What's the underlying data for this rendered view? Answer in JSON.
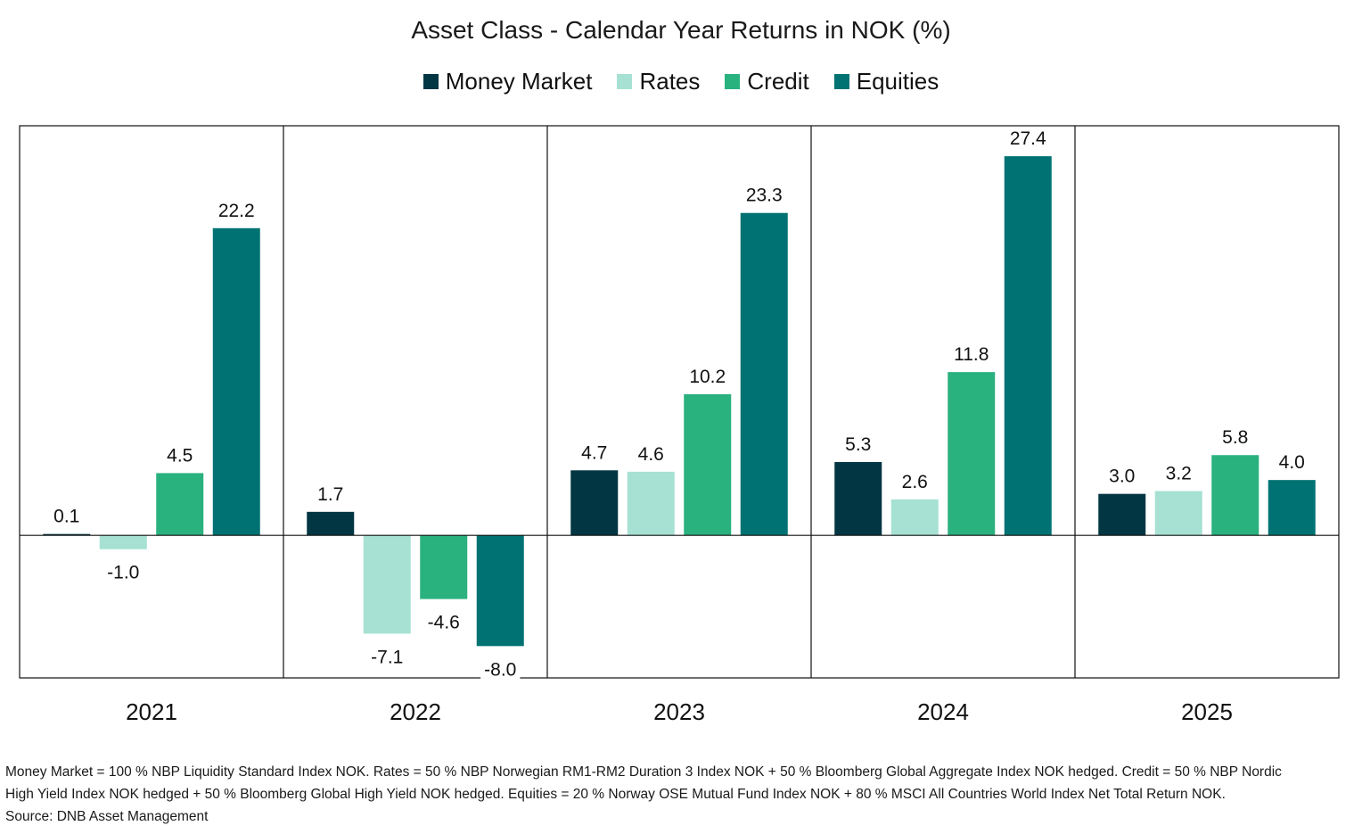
{
  "title": "Asset Class - Calendar Year Returns in NOK (%)",
  "colors": {
    "Money Market": "#023642",
    "Rates": "#a6e1d3",
    "Credit": "#29b17e",
    "Equities": "#007273"
  },
  "chart_data": {
    "type": "bar",
    "title": "Asset Class - Calendar Year Returns in NOK (%)",
    "xlabel": "",
    "ylabel": "",
    "ylim": [
      -10.3,
      29.6
    ],
    "grid": false,
    "legend_position": "top",
    "categories": [
      "2021",
      "2022",
      "2023",
      "2024",
      "2025"
    ],
    "series": [
      {
        "name": "Money Market",
        "values": [
          0.1,
          1.7,
          4.7,
          5.3,
          3.0
        ],
        "labels": [
          "0.1",
          "1.7",
          "4.7",
          "5.3",
          "3.0"
        ]
      },
      {
        "name": "Rates",
        "values": [
          -1.0,
          -7.1,
          4.6,
          2.6,
          3.2
        ],
        "labels": [
          "-1.0",
          "-7.1",
          "4.6",
          "2.6",
          "3.2"
        ]
      },
      {
        "name": "Credit",
        "values": [
          4.5,
          -4.6,
          10.2,
          11.8,
          5.8
        ],
        "labels": [
          "4.5",
          "-4.6",
          "10.2",
          "11.8",
          "5.8"
        ]
      },
      {
        "name": "Equities",
        "values": [
          22.2,
          -8.0,
          23.3,
          27.4,
          4.0
        ],
        "labels": [
          "22.2",
          "-8.0",
          "23.3",
          "27.4",
          "4.0"
        ]
      }
    ]
  },
  "footnote": {
    "line1": "Money Market = 100 % NBP Liquidity Standard Index NOK. Rates = 50 % NBP Norwegian RM1-RM2 Duration 3 Index NOK + 50 % Bloomberg Global Aggregate Index NOK hedged. Credit = 50 % NBP Nordic",
    "line2": "High Yield Index NOK hedged + 50 % Bloomberg Global High Yield NOK hedged. Equities = 20 % Norway OSE Mutual Fund Index NOK + 80 % MSCI All Countries World Index Net Total Return NOK.",
    "source": "Source: DNB Asset Management"
  }
}
